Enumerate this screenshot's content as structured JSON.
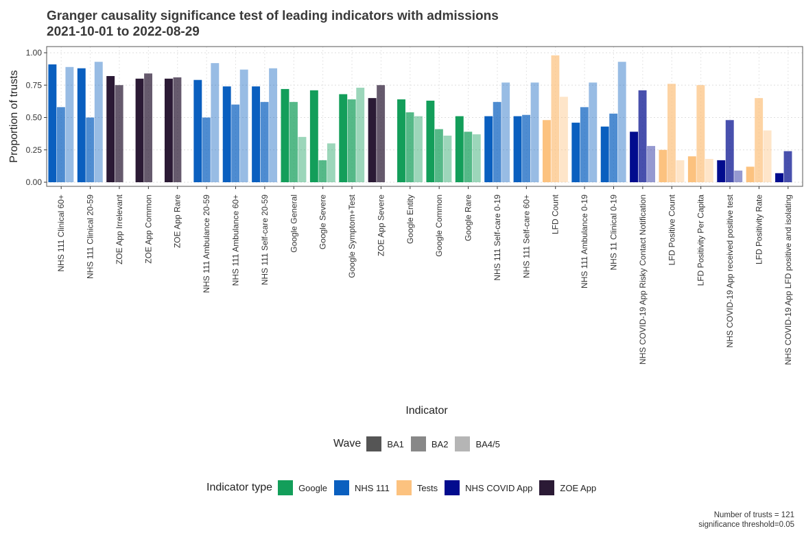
{
  "chart_data": {
    "type": "bar",
    "title": "Granger causality significance test of leading indicators with admissions",
    "subtitle": "2021-10-01 to 2022-08-29",
    "xlabel": "Indicator",
    "ylabel": "Proportion of trusts",
    "ylim": [
      0,
      1.0
    ],
    "yticks": [
      "0.00",
      "0.25",
      "0.50",
      "0.75",
      "1.00"
    ],
    "grid": true,
    "categories": [
      {
        "name": "NHS 111 Clinical 60+",
        "type": "NHS 111"
      },
      {
        "name": "NHS 111 Clinical 20-59",
        "type": "NHS 111"
      },
      {
        "name": "ZOE App Irrelevant",
        "type": "ZOE App"
      },
      {
        "name": "ZOE App Common",
        "type": "ZOE App"
      },
      {
        "name": "ZOE App Rare",
        "type": "ZOE App"
      },
      {
        "name": "NHS 111 Ambulance 20-59",
        "type": "NHS 111"
      },
      {
        "name": "NHS 111 Ambulance 60+",
        "type": "NHS 111"
      },
      {
        "name": "NHS 111 Self-care 20-59",
        "type": "NHS 111"
      },
      {
        "name": "Google General",
        "type": "Google"
      },
      {
        "name": "Google Severe",
        "type": "Google"
      },
      {
        "name": "Google Symptom+Test",
        "type": "Google"
      },
      {
        "name": "ZOE App Severe",
        "type": "ZOE App"
      },
      {
        "name": "Google Entity",
        "type": "Google"
      },
      {
        "name": "Google Common",
        "type": "Google"
      },
      {
        "name": "Google Rare",
        "type": "Google"
      },
      {
        "name": "NHS 111 Self-care 0-19",
        "type": "NHS 111"
      },
      {
        "name": "NHS 111 Self-care 60+",
        "type": "NHS 111"
      },
      {
        "name": "LFD Count",
        "type": "Tests"
      },
      {
        "name": "NHS 111 Ambulance 0-19",
        "type": "NHS 111"
      },
      {
        "name": "NHS 11 Clinical 0-19",
        "type": "NHS 111"
      },
      {
        "name": "NHS COVID-19 App Risky Contact Notification",
        "type": "NHS COVID App"
      },
      {
        "name": "LFD Positive Count",
        "type": "Tests"
      },
      {
        "name": "LFD Positivity Per Capita",
        "type": "Tests"
      },
      {
        "name": "NHS COVID-19 App received positive test",
        "type": "NHS COVID App"
      },
      {
        "name": "LFD Positivity Rate",
        "type": "Tests"
      },
      {
        "name": "NHS COVID-19 App LFD positive and isolating",
        "type": "NHS COVID App"
      }
    ],
    "series": [
      {
        "name": "BA1",
        "values": [
          0.91,
          0.88,
          0.82,
          0.8,
          0.8,
          0.79,
          0.74,
          0.74,
          0.72,
          0.71,
          0.68,
          0.65,
          0.64,
          0.63,
          0.51,
          0.51,
          0.51,
          0.48,
          0.46,
          0.43,
          0.39,
          0.25,
          0.2,
          0.17,
          0.12,
          0.07
        ]
      },
      {
        "name": "BA2",
        "values": [
          0.58,
          0.5,
          0.75,
          0.84,
          0.81,
          0.5,
          0.6,
          0.62,
          0.62,
          0.17,
          0.64,
          0.75,
          0.54,
          0.41,
          0.39,
          0.62,
          0.52,
          0.98,
          0.58,
          0.53,
          0.71,
          0.76,
          0.75,
          0.48,
          0.65,
          0.24
        ]
      },
      {
        "name": "BA4/5",
        "values": [
          0.89,
          0.93,
          null,
          null,
          null,
          0.92,
          0.87,
          0.88,
          0.35,
          0.3,
          0.73,
          null,
          0.51,
          0.36,
          0.37,
          0.77,
          0.77,
          0.66,
          0.77,
          0.93,
          0.28,
          0.17,
          0.18,
          0.09,
          0.4,
          null
        ]
      }
    ],
    "type_colors": {
      "Google": "#139e5a",
      "NHS 111": "#0a5fbf",
      "Tests": "#fcc27f",
      "NHS COVID App": "#020c8e",
      "ZOE App": "#2b1a35"
    },
    "wave_opacity": {
      "BA1": 1.0,
      "BA2": 0.72,
      "BA4/5": 0.42
    }
  },
  "legends": {
    "wave": {
      "title": "Wave",
      "items": [
        {
          "label": "BA1",
          "color": "#555555"
        },
        {
          "label": "BA2",
          "color": "#888888"
        },
        {
          "label": "BA4/5",
          "color": "#b5b5b5"
        }
      ]
    },
    "type": {
      "title": "Indicator type",
      "items": [
        {
          "label": "Google",
          "color": "#139e5a"
        },
        {
          "label": "NHS 111",
          "color": "#0a5fbf"
        },
        {
          "label": "Tests",
          "color": "#fcc27f"
        },
        {
          "label": "NHS COVID App",
          "color": "#020c8e"
        },
        {
          "label": "ZOE App",
          "color": "#2b1a35"
        }
      ]
    }
  },
  "caption": {
    "line1": "Number of trusts = 121",
    "line2": "significance threshold=0.05"
  }
}
